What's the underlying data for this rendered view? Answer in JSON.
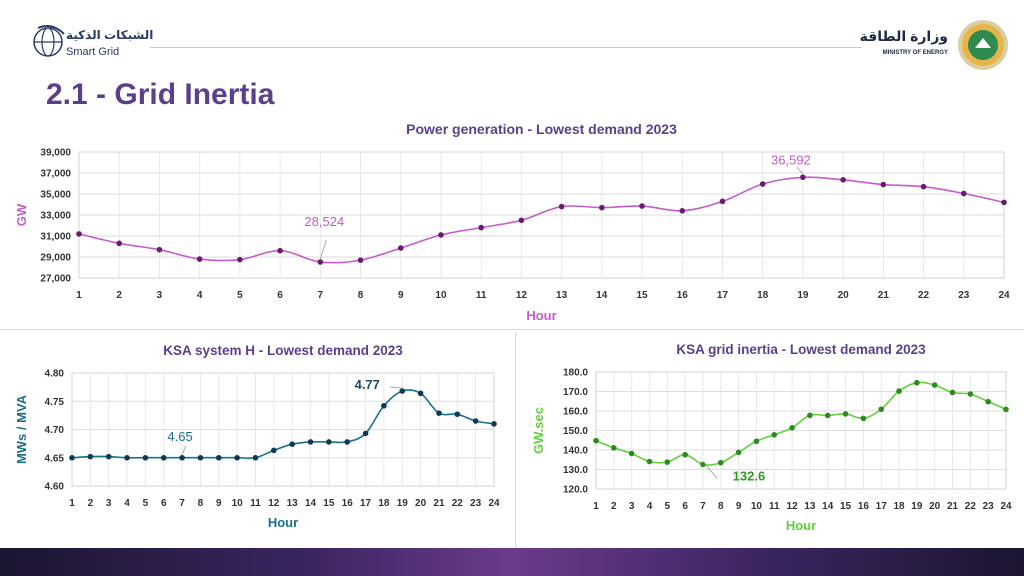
{
  "header": {
    "left_logo": {
      "arabic": "الشبكات الذكية",
      "english": "Smart Grid"
    },
    "right_logo": {
      "arabic": "وزارة الطاقة",
      "english": "MINISTRY OF ENERGY"
    }
  },
  "page_title": "2.1 - Grid Inertia",
  "colors": {
    "title": "#5b3f8c",
    "power": "#c45ccc",
    "system_h": "#1b6f8a",
    "inertia": "#5fd03c"
  },
  "chart_data": [
    {
      "type": "line",
      "title": "Power generation - Lowest demand 2023",
      "xlabel": "Hour",
      "ylabel": "GW",
      "x": [
        1,
        2,
        3,
        4,
        5,
        6,
        7,
        8,
        9,
        10,
        11,
        12,
        13,
        14,
        15,
        16,
        17,
        18,
        19,
        20,
        21,
        22,
        23,
        24
      ],
      "values": [
        31200,
        30300,
        29700,
        28800,
        28750,
        29600,
        28524,
        28700,
        29850,
        31100,
        31800,
        32500,
        33800,
        33700,
        33850,
        33400,
        34300,
        35950,
        36592,
        36350,
        35900,
        35700,
        35050,
        34200
      ],
      "ylim": [
        27000,
        39000
      ],
      "yticks": [
        "27,000",
        "29,000",
        "31,000",
        "33,000",
        "35,000",
        "37,000",
        "39,000"
      ],
      "annotations": [
        {
          "x": 7,
          "label": "28,524"
        },
        {
          "x": 19,
          "label": "36,592"
        }
      ],
      "grid": true
    },
    {
      "type": "line",
      "title": "KSA system H - Lowest demand 2023",
      "xlabel": "Hour",
      "ylabel": "MWs / MVA",
      "x": [
        1,
        2,
        3,
        4,
        5,
        6,
        7,
        8,
        9,
        10,
        11,
        12,
        13,
        14,
        15,
        16,
        17,
        18,
        19,
        20,
        21,
        22,
        23,
        24
      ],
      "values": [
        4.65,
        4.652,
        4.652,
        4.65,
        4.65,
        4.65,
        4.65,
        4.65,
        4.65,
        4.65,
        4.65,
        4.663,
        4.674,
        4.678,
        4.678,
        4.678,
        4.693,
        4.742,
        4.768,
        4.764,
        4.729,
        4.727,
        4.715,
        4.71
      ],
      "ylim": [
        4.6,
        4.8
      ],
      "yticks": [
        "4.60",
        "4.65",
        "4.70",
        "4.75",
        "4.80"
      ],
      "annotations": [
        {
          "x": 7,
          "label": "4.65"
        },
        {
          "x": 19,
          "label": "4.77"
        }
      ],
      "grid": true
    },
    {
      "type": "line",
      "title": "KSA grid inertia - Lowest demand 2023",
      "xlabel": "Hour",
      "ylabel": "GW.sec",
      "x": [
        1,
        2,
        3,
        4,
        5,
        6,
        7,
        8,
        9,
        10,
        11,
        12,
        13,
        14,
        15,
        16,
        17,
        18,
        19,
        20,
        21,
        22,
        23,
        24
      ],
      "values": [
        144.8,
        141.1,
        138.2,
        134.1,
        133.8,
        137.6,
        132.6,
        133.5,
        138.8,
        144.5,
        147.8,
        151.4,
        157.8,
        157.7,
        158.5,
        156.2,
        160.9,
        170.2,
        174.5,
        173.3,
        169.5,
        168.7,
        164.8,
        160.8
      ],
      "ylim": [
        120,
        180
      ],
      "yticks": [
        "120.0",
        "130.0",
        "140.0",
        "150.0",
        "160.0",
        "170.0",
        "180.0"
      ],
      "annotations": [
        {
          "x": 7,
          "label": "132.6"
        }
      ],
      "grid": true
    }
  ]
}
